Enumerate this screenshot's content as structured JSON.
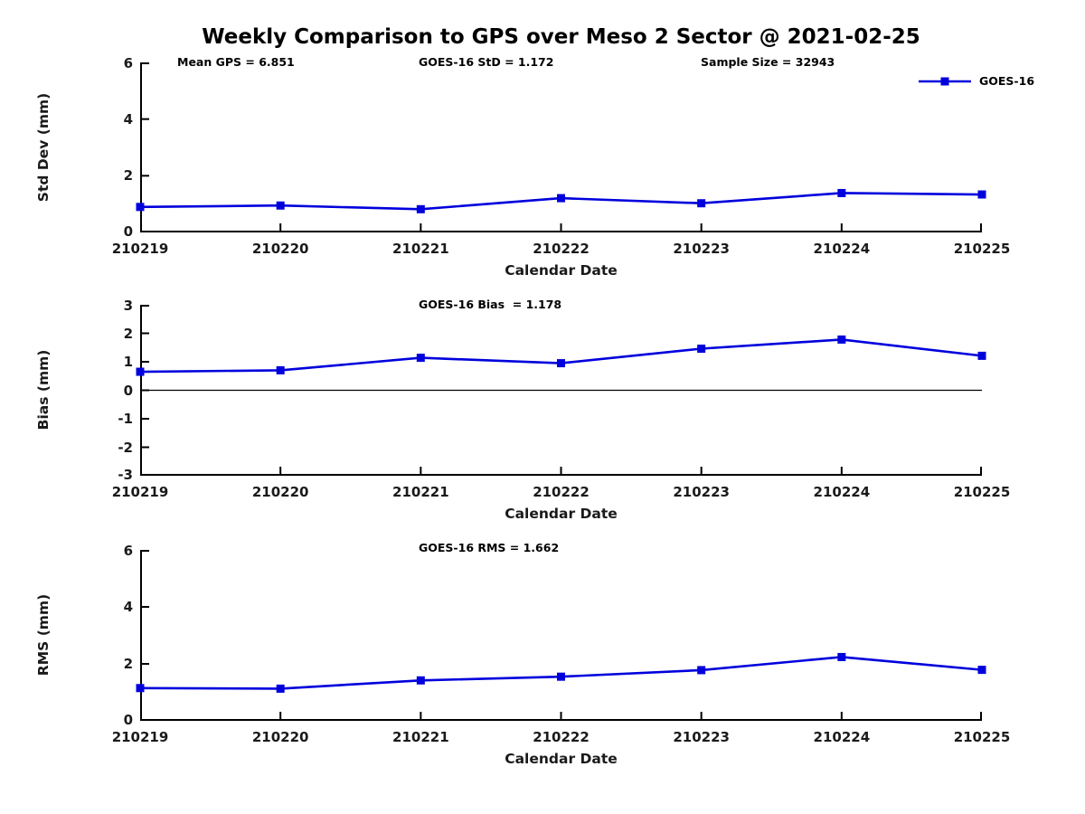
{
  "title": "Weekly Comparison to GPS over Meso 2 Sector @ 2021-02-25",
  "xlabel": "Calendar Date",
  "colors": {
    "series": "#0000dd",
    "axis": "#000000",
    "zero_line": "#000000",
    "background": "#ffffff"
  },
  "chart_data": [
    {
      "type": "line",
      "name": "std-dev",
      "ylabel": "Std Dev (mm)",
      "xlabel": "Calendar Date",
      "categories": [
        "210219",
        "210220",
        "210221",
        "210222",
        "210223",
        "210224",
        "210225"
      ],
      "series": [
        {
          "name": "GOES-16",
          "values": [
            0.9,
            0.95,
            0.82,
            1.21,
            1.03,
            1.39,
            1.34
          ]
        }
      ],
      "ylim": [
        0,
        6
      ],
      "yticks": [
        0,
        2,
        4,
        6
      ],
      "grid": false,
      "legend_position": "top-right",
      "marker": "square",
      "annotations": [
        "Mean GPS = 6.851",
        "GOES-16 StD = 1.172",
        "Sample Size = 32943"
      ]
    },
    {
      "type": "line",
      "name": "bias",
      "ylabel": "Bias (mm)",
      "xlabel": "Calendar Date",
      "categories": [
        "210219",
        "210220",
        "210221",
        "210222",
        "210223",
        "210224",
        "210225"
      ],
      "series": [
        {
          "name": "GOES-16",
          "values": [
            0.65,
            0.7,
            1.14,
            0.95,
            1.46,
            1.78,
            1.21
          ]
        }
      ],
      "ylim": [
        -3,
        3
      ],
      "yticks": [
        3,
        2,
        1,
        0,
        -1,
        -2,
        -3
      ],
      "grid": false,
      "zero_line": true,
      "marker": "square",
      "annotations": [
        "GOES-16 Bias  = 1.178"
      ]
    },
    {
      "type": "line",
      "name": "rms",
      "ylabel": "RMS (mm)",
      "xlabel": "Calendar Date",
      "categories": [
        "210219",
        "210220",
        "210221",
        "210222",
        "210223",
        "210224",
        "210225"
      ],
      "series": [
        {
          "name": "GOES-16",
          "values": [
            1.15,
            1.13,
            1.42,
            1.55,
            1.78,
            2.24,
            1.79
          ]
        }
      ],
      "ylim": [
        0,
        6
      ],
      "yticks": [
        0,
        2,
        4,
        6
      ],
      "grid": false,
      "zero_line": false,
      "marker": "square",
      "annotations": [
        "GOES-16 RMS = 1.662"
      ]
    }
  ]
}
